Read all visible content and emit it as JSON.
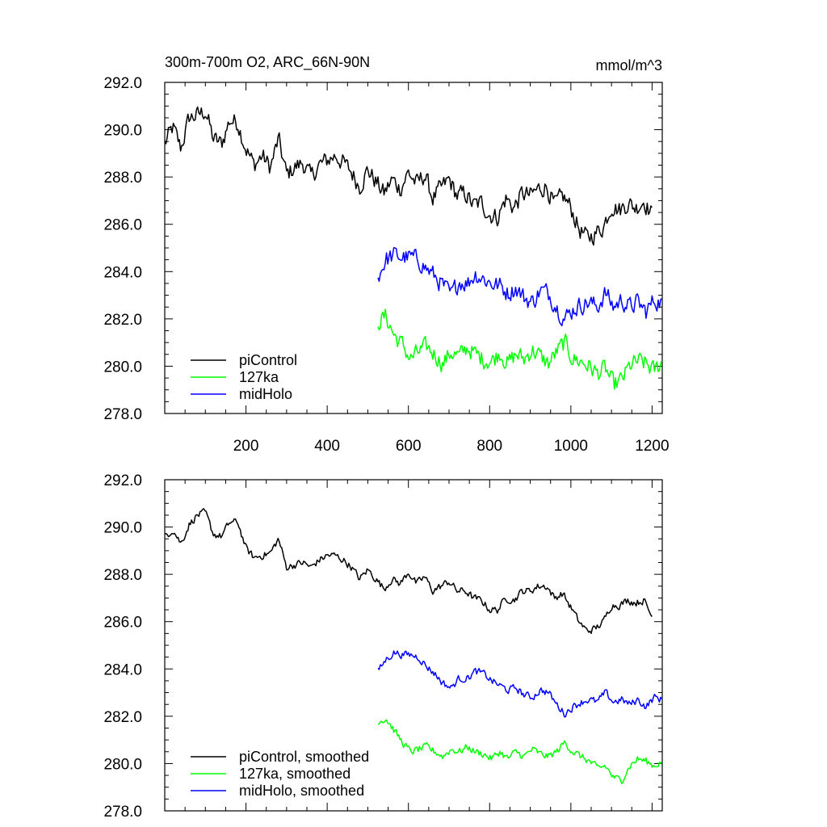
{
  "chart_data": [
    {
      "type": "line",
      "title": "300m-700m O2, ARC_66N-90N",
      "units": "mmol/m^3",
      "xlim": [
        0,
        1225
      ],
      "ylim": [
        278,
        292
      ],
      "xticks": [
        200,
        400,
        600,
        800,
        1000,
        1200
      ],
      "xtick_labels": [
        "200",
        "400",
        "600",
        "800",
        "1000",
        "1200"
      ],
      "yticks": [
        278,
        280,
        282,
        284,
        286,
        288,
        290,
        292
      ],
      "ytick_labels": [
        "278.0",
        "280.0",
        "282.0",
        "284.0",
        "286.0",
        "288.0",
        "290.0",
        "292.0"
      ],
      "legend_position": "bottom-left",
      "grid": false,
      "series": [
        {
          "name": "piControl",
          "color": "#000000",
          "x": [
            0,
            20,
            40,
            60,
            80,
            100,
            120,
            140,
            160,
            180,
            200,
            220,
            240,
            260,
            280,
            300,
            320,
            340,
            360,
            380,
            400,
            420,
            440,
            460,
            480,
            500,
            520,
            540,
            560,
            580,
            600,
            620,
            640,
            660,
            680,
            700,
            720,
            740,
            760,
            780,
            800,
            820,
            840,
            860,
            880,
            900,
            920,
            940,
            960,
            980,
            1000,
            1020,
            1040,
            1060,
            1080,
            1100,
            1120,
            1140,
            1160,
            1180,
            1200
          ],
          "values": [
            289.4,
            290.1,
            289.2,
            290.5,
            290.6,
            290.8,
            289.6,
            289.4,
            290.4,
            290.3,
            289.2,
            288.5,
            288.9,
            288.4,
            289.6,
            288.1,
            288.4,
            288.6,
            288.0,
            288.5,
            288.7,
            288.9,
            288.6,
            288.2,
            287.6,
            288.3,
            287.8,
            287.3,
            287.9,
            287.5,
            288.2,
            287.7,
            288.1,
            287.1,
            287.5,
            287.9,
            287.2,
            287.3,
            286.8,
            286.9,
            286.4,
            286.3,
            287.1,
            286.7,
            287.3,
            287.2,
            287.5,
            287.6,
            286.8,
            287.2,
            286.7,
            285.8,
            285.4,
            285.6,
            285.9,
            286.8,
            286.6,
            286.9,
            286.7,
            287.0,
            286.4
          ],
          "smoothed": [
            289.6,
            289.9,
            289.3,
            290.1,
            290.5,
            290.6,
            289.7,
            289.6,
            290.2,
            290.2,
            289.1,
            288.7,
            288.8,
            288.9,
            289.5,
            288.3,
            288.4,
            288.5,
            288.3,
            288.6,
            288.8,
            288.8,
            288.6,
            288.3,
            287.8,
            288.2,
            287.8,
            287.4,
            287.8,
            287.6,
            288.1,
            287.6,
            287.9,
            287.3,
            287.5,
            287.7,
            287.3,
            287.3,
            287.0,
            286.9,
            286.5,
            286.5,
            287.0,
            286.9,
            287.3,
            287.3,
            287.5,
            287.5,
            287.0,
            287.2,
            286.6,
            286.0,
            285.6,
            285.7,
            286.0,
            286.7,
            286.7,
            286.9,
            286.8,
            286.9,
            286.2
          ]
        },
        {
          "name": "127ka",
          "color": "#00ff00",
          "x": [
            525,
            545,
            565,
            585,
            605,
            625,
            645,
            665,
            685,
            705,
            725,
            745,
            765,
            785,
            805,
            825,
            845,
            865,
            885,
            905,
            925,
            945,
            965,
            985,
            1005,
            1025,
            1045,
            1065,
            1085,
            1105,
            1125,
            1145,
            1165,
            1185,
            1205,
            1225
          ],
          "values": [
            281.9,
            282.1,
            281.3,
            280.9,
            280.3,
            280.6,
            280.8,
            280.5,
            280.1,
            280.6,
            280.4,
            280.8,
            280.5,
            280.3,
            280.2,
            280.6,
            280.1,
            280.5,
            280.3,
            280.7,
            280.4,
            280.1,
            280.6,
            281.0,
            280.3,
            280.2,
            280.0,
            279.7,
            279.9,
            279.2,
            279.4,
            280.0,
            280.2,
            280.1,
            279.8,
            280.2
          ],
          "smoothed": [
            281.8,
            281.9,
            281.4,
            280.9,
            280.5,
            280.6,
            280.7,
            280.5,
            280.3,
            280.6,
            280.5,
            280.7,
            280.5,
            280.4,
            280.2,
            280.5,
            280.2,
            280.5,
            280.3,
            280.6,
            280.4,
            280.3,
            280.5,
            280.9,
            280.5,
            280.3,
            280.1,
            279.8,
            279.9,
            279.4,
            279.3,
            279.9,
            280.2,
            280.1,
            279.9,
            280.1
          ]
        },
        {
          "name": "midHolo",
          "color": "#0000ff",
          "x": [
            525,
            545,
            565,
            585,
            605,
            625,
            645,
            665,
            685,
            705,
            725,
            745,
            765,
            785,
            805,
            825,
            845,
            865,
            885,
            905,
            925,
            945,
            965,
            985,
            1005,
            1025,
            1045,
            1065,
            1085,
            1105,
            1125,
            1145,
            1165,
            1185,
            1205,
            1225
          ],
          "values": [
            283.8,
            284.5,
            284.7,
            284.6,
            284.6,
            284.5,
            284.1,
            283.8,
            283.4,
            283.0,
            283.6,
            283.5,
            283.9,
            283.7,
            283.5,
            283.4,
            283.1,
            283.3,
            282.9,
            282.7,
            283.2,
            283.1,
            282.5,
            282.0,
            282.4,
            282.6,
            282.7,
            282.5,
            283.1,
            282.5,
            282.8,
            282.5,
            282.7,
            282.3,
            282.8,
            282.7
          ],
          "smoothed": [
            283.9,
            284.4,
            284.7,
            284.6,
            284.6,
            284.5,
            284.1,
            283.8,
            283.4,
            283.2,
            283.6,
            283.6,
            283.9,
            283.8,
            283.5,
            283.3,
            283.1,
            283.2,
            282.9,
            282.8,
            283.1,
            283.0,
            282.5,
            282.1,
            282.4,
            282.6,
            282.7,
            282.6,
            283.0,
            282.6,
            282.7,
            282.5,
            282.7,
            282.4,
            282.8,
            282.7
          ]
        }
      ]
    },
    {
      "type": "line",
      "xlim": [
        0,
        1225
      ],
      "ylim": [
        278,
        292
      ],
      "yticks": [
        278,
        280,
        282,
        284,
        286,
        288,
        290,
        292
      ],
      "ytick_labels": [
        "278.0",
        "280.0",
        "282.0",
        "284.0",
        "286.0",
        "288.0",
        "290.0",
        "292.0"
      ],
      "legend_position": "bottom-left",
      "grid": false,
      "series": [
        {
          "name": "piControl, smoothed",
          "color": "#000000",
          "source": 0
        },
        {
          "name": "127ka, smoothed",
          "color": "#00ff00",
          "source": 1
        },
        {
          "name": "midHolo, smoothed",
          "color": "#0000ff",
          "source": 2
        }
      ]
    }
  ]
}
